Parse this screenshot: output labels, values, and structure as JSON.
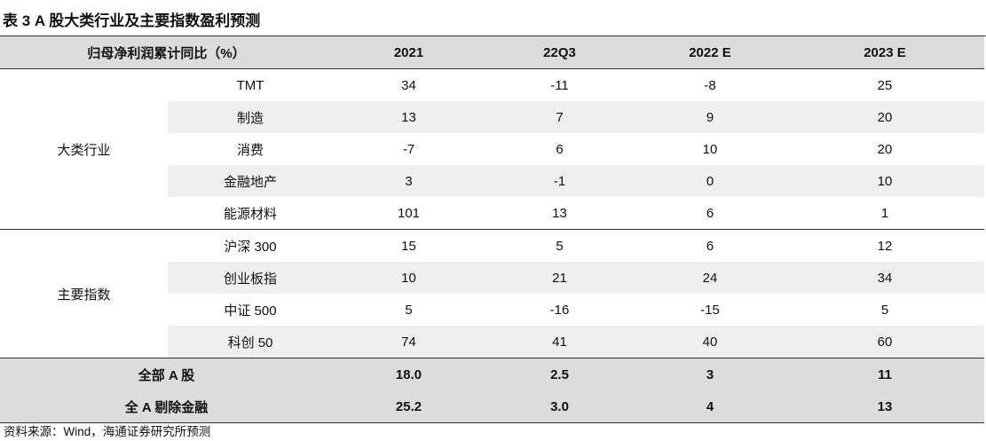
{
  "title": "表 3 A 股大类行业及主要指数盈利预测",
  "header": {
    "label": "归母净利润累计同比（%）",
    "years": [
      "2021",
      "22Q3",
      "2022 E",
      "2023 E"
    ]
  },
  "groups": [
    {
      "name": "大类行业",
      "rows": [
        {
          "label": "TMT",
          "values": [
            "34",
            "-11",
            "-8",
            "25"
          ]
        },
        {
          "label": "制造",
          "values": [
            "13",
            "7",
            "9",
            "20"
          ]
        },
        {
          "label": "消费",
          "values": [
            "-7",
            "6",
            "10",
            "20"
          ]
        },
        {
          "label": "金融地产",
          "values": [
            "3",
            "-1",
            "0",
            "10"
          ]
        },
        {
          "label": "能源材料",
          "values": [
            "101",
            "13",
            "6",
            "1"
          ]
        }
      ]
    },
    {
      "name": "主要指数",
      "rows": [
        {
          "label": "沪深 300",
          "values": [
            "15",
            "5",
            "6",
            "12"
          ]
        },
        {
          "label": "创业板指",
          "values": [
            "10",
            "21",
            "24",
            "34"
          ]
        },
        {
          "label": "中证 500",
          "values": [
            "5",
            "-16",
            "-15",
            "5"
          ]
        },
        {
          "label": "科创 50",
          "values": [
            "74",
            "41",
            "40",
            "60"
          ]
        }
      ]
    }
  ],
  "totals": [
    {
      "label": "全部 A 股",
      "values": [
        "18.0",
        "2.5",
        "3",
        "11"
      ]
    },
    {
      "label": "全 A 剔除金融",
      "values": [
        "25.2",
        "3.0",
        "4",
        "13"
      ]
    }
  ],
  "source": "资料来源：Wind，海通证券研究所预测"
}
